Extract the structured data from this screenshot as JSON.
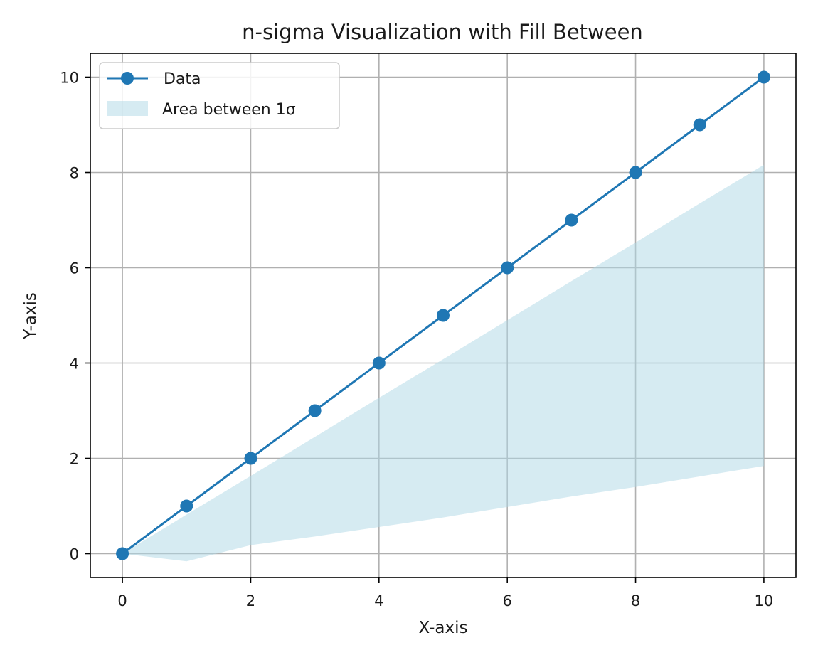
{
  "chart_data": {
    "type": "line",
    "title": "n-sigma Visualization with Fill Between",
    "xlabel": "X-axis",
    "ylabel": "Y-axis",
    "xlim": [
      -0.5,
      10.5
    ],
    "ylim": [
      -0.5,
      10.5
    ],
    "xticks": [
      0,
      2,
      4,
      6,
      8,
      10
    ],
    "yticks": [
      0,
      2,
      4,
      6,
      8,
      10
    ],
    "xtick_labels": [
      "0",
      "2",
      "4",
      "6",
      "8",
      "10"
    ],
    "ytick_labels": [
      "0",
      "2",
      "4",
      "6",
      "8",
      "10"
    ],
    "grid": true,
    "legend_position": "upper-left",
    "series": [
      {
        "name": "Data",
        "type": "line",
        "marker": "circle",
        "color": "#1f77b4",
        "x": [
          0,
          1,
          2,
          3,
          4,
          5,
          6,
          7,
          8,
          9,
          10
        ],
        "y": [
          0,
          1,
          2,
          3,
          4,
          5,
          6,
          7,
          8,
          9,
          10
        ]
      }
    ],
    "fill_between": {
      "name": "Area between 1σ",
      "color": "#add8e6",
      "opacity": 0.5,
      "x": [
        0,
        1,
        2,
        3,
        4,
        5,
        6,
        7,
        8,
        9,
        10
      ],
      "upper": [
        0,
        0.82,
        1.63,
        2.45,
        3.27,
        4.08,
        4.9,
        5.72,
        6.53,
        7.35,
        8.16
      ],
      "lower": [
        0,
        -0.16,
        0.18,
        0.36,
        0.56,
        0.76,
        0.98,
        1.2,
        1.4,
        1.62,
        1.84
      ]
    }
  }
}
